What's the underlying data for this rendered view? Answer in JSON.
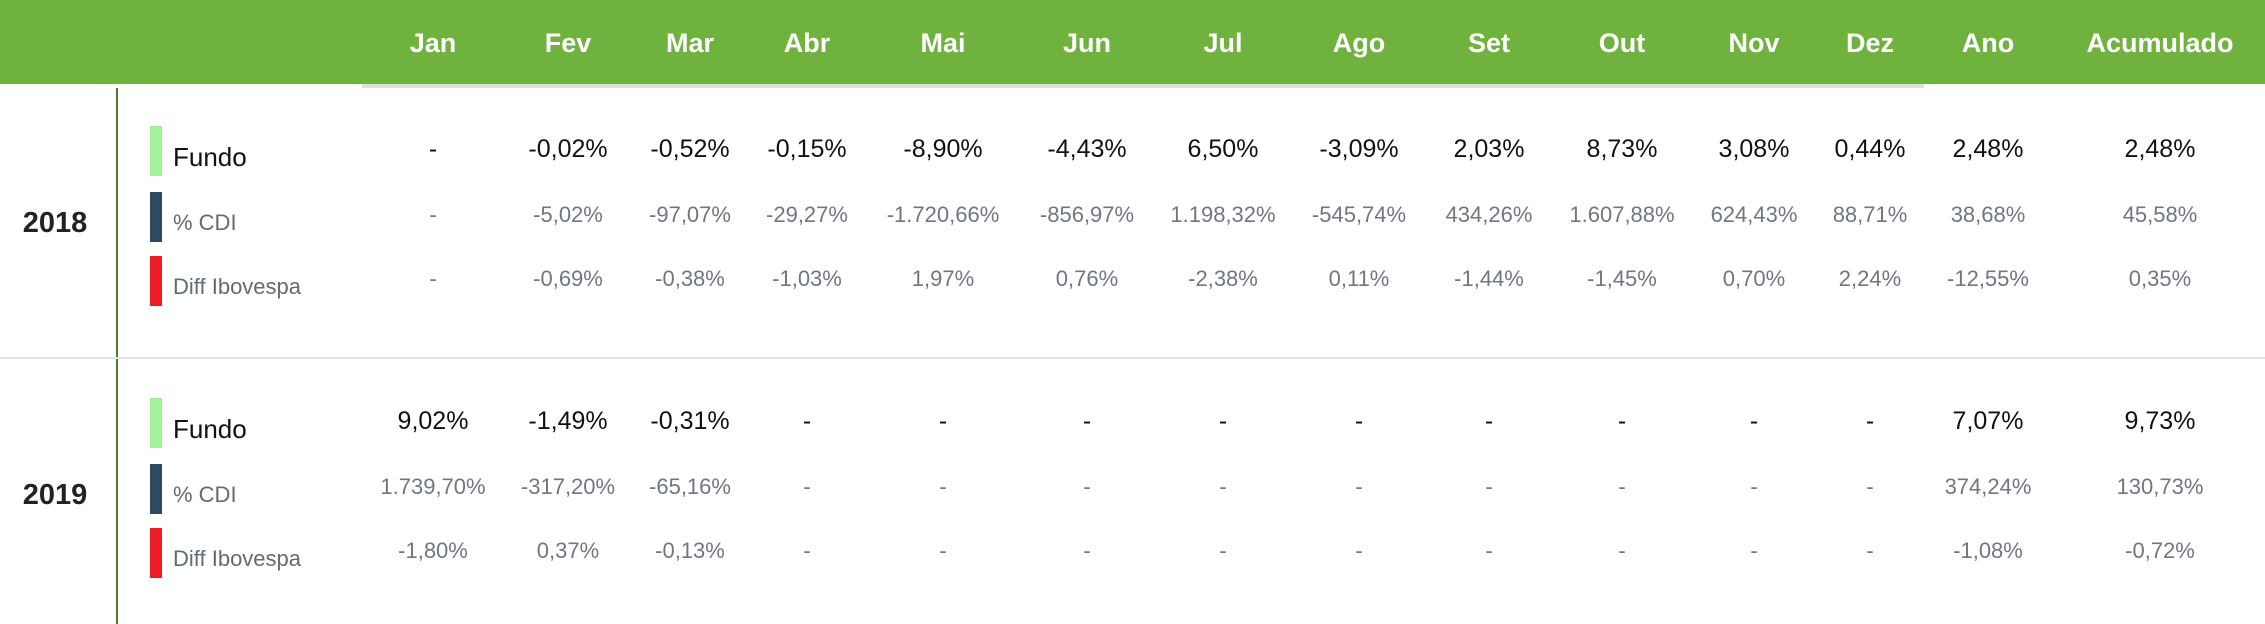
{
  "header": {
    "months": [
      "Jan",
      "Fev",
      "Mar",
      "Abr",
      "Mai",
      "Jun",
      "Jul",
      "Ago",
      "Set",
      "Out",
      "Nov",
      "Dez",
      "Ano",
      "Acumulado"
    ]
  },
  "legend": {
    "fundo": "Fundo",
    "cdi": "% CDI",
    "ibov": "Diff Ibovespa"
  },
  "colors": {
    "header": "#70b23e",
    "fundo": "#a4f29a",
    "cdi": "#2e4a63",
    "ibov": "#ed1c24"
  },
  "years": [
    {
      "year": "2018",
      "fundo": [
        "-",
        "-0,02%",
        "-0,52%",
        "-0,15%",
        "-8,90%",
        "-4,43%",
        "6,50%",
        "-3,09%",
        "2,03%",
        "8,73%",
        "3,08%",
        "0,44%",
        "2,48%",
        "2,48%"
      ],
      "cdi": [
        "-",
        "-5,02%",
        "-97,07%",
        "-29,27%",
        "-1.720,66%",
        "-856,97%",
        "1.198,32%",
        "-545,74%",
        "434,26%",
        "1.607,88%",
        "624,43%",
        "88,71%",
        "38,68%",
        "45,58%"
      ],
      "ibov": [
        "-",
        "-0,69%",
        "-0,38%",
        "-1,03%",
        "1,97%",
        "0,76%",
        "-2,38%",
        "0,11%",
        "-1,44%",
        "-1,45%",
        "0,70%",
        "2,24%",
        "-12,55%",
        "0,35%"
      ]
    },
    {
      "year": "2019",
      "fundo": [
        "9,02%",
        "-1,49%",
        "-0,31%",
        "-",
        "-",
        "-",
        "-",
        "-",
        "-",
        "-",
        "-",
        "-",
        "7,07%",
        "9,73%"
      ],
      "cdi": [
        "1.739,70%",
        "-317,20%",
        "-65,16%",
        "-",
        "-",
        "-",
        "-",
        "-",
        "-",
        "-",
        "-",
        "-",
        "374,24%",
        "130,73%"
      ],
      "ibov": [
        "-1,80%",
        "0,37%",
        "-0,13%",
        "-",
        "-",
        "-",
        "-",
        "-",
        "-",
        "-",
        "-",
        "-",
        "-1,08%",
        "-0,72%"
      ]
    }
  ]
}
